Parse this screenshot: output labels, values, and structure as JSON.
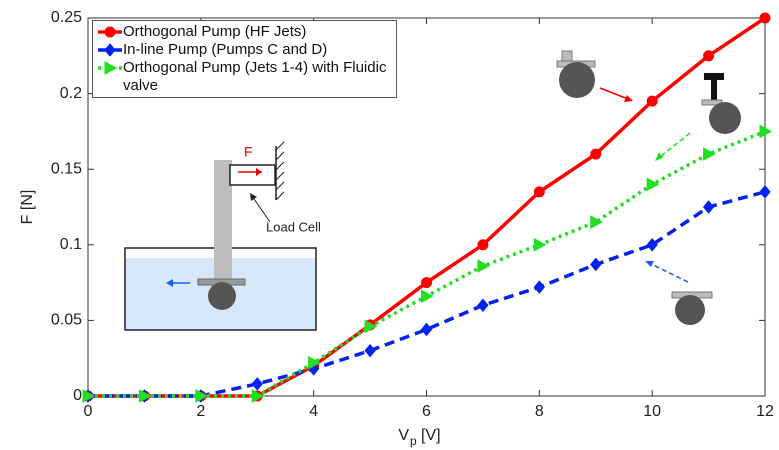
{
  "chart_data": {
    "type": "line",
    "x": [
      0,
      1,
      2,
      3,
      4,
      5,
      6,
      7,
      8,
      9,
      10,
      11,
      12
    ],
    "series": [
      {
        "name": "Orthogonal Pump (HF Jets)",
        "color": "#ff0000",
        "values": [
          0,
          0,
          0,
          0,
          0.02,
          0.047,
          0.075,
          0.1,
          0.135,
          0.16,
          0.195,
          0.225,
          0.25
        ]
      },
      {
        "name": "In-line Pump (Pumps C and D)",
        "color": "#0022ee",
        "values": [
          0,
          0,
          0,
          0.008,
          0.018,
          0.03,
          0.044,
          0.06,
          0.072,
          0.087,
          0.1,
          0.125,
          0.135
        ]
      },
      {
        "name": "Orthogonal Pump (Jets 1-4) with Fluidic valve",
        "color": "#22dd22",
        "values": [
          0,
          0,
          0,
          0,
          0.022,
          0.046,
          0.066,
          0.086,
          0.1,
          0.115,
          0.14,
          0.16,
          0.175
        ]
      }
    ],
    "xlim": [
      0,
      12
    ],
    "xticks": [
      0,
      2,
      4,
      6,
      8,
      10,
      12
    ],
    "ylim": [
      0,
      0.25
    ],
    "yticks": [
      0,
      0.05,
      0.1,
      0.15,
      0.2,
      0.25
    ],
    "y_label": "F [N]",
    "x_label": "V",
    "x_label_subscript": "p",
    "x_label_unit": "[V]",
    "annotations": [
      "F",
      "Load Cell"
    ],
    "legend": "upper left"
  }
}
